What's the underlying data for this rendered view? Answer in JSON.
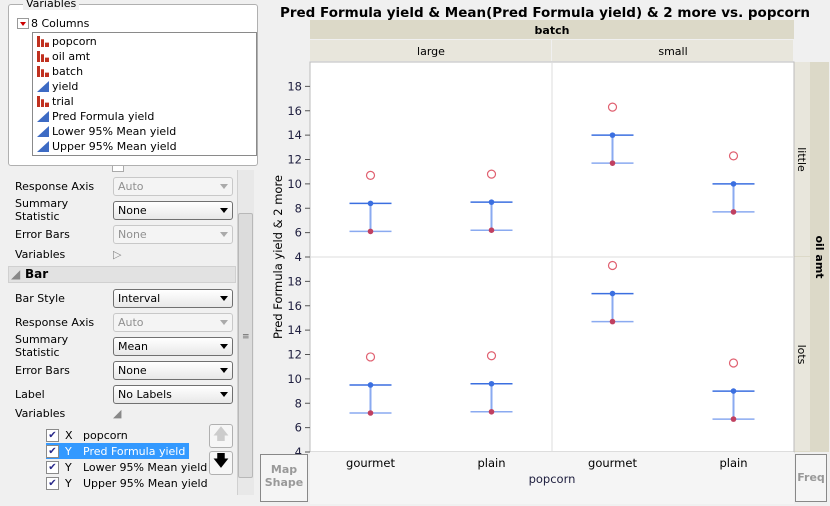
{
  "variables_panel": {
    "title": "Variables",
    "columns_header": "8 Columns",
    "columns": [
      {
        "name": "popcorn",
        "type": "nominal"
      },
      {
        "name": "oil amt",
        "type": "nominal"
      },
      {
        "name": "batch",
        "type": "nominal"
      },
      {
        "name": "yield",
        "type": "continuous"
      },
      {
        "name": "trial",
        "type": "nominal"
      },
      {
        "name": "Pred Formula yield",
        "type": "continuous"
      },
      {
        "name": "Lower 95% Mean yield",
        "type": "continuous"
      },
      {
        "name": "Upper 95% Mean yield",
        "type": "continuous"
      }
    ]
  },
  "points_section": {
    "response_axis_label": "Response Axis",
    "response_axis_value": "Auto",
    "summary_label": "Summary Statistic",
    "summary_value": "None",
    "error_bars_label": "Error Bars",
    "error_bars_value": "None",
    "variables_label": "Variables"
  },
  "bar_section": {
    "title": "Bar",
    "bar_style_label": "Bar Style",
    "bar_style_value": "Interval",
    "response_axis_label": "Response Axis",
    "response_axis_value": "Auto",
    "summary_label": "Summary Statistic",
    "summary_value": "Mean",
    "error_bars_label": "Error Bars",
    "error_bars_value": "None",
    "label_label": "Label",
    "label_value": "No Labels",
    "variables_label": "Variables",
    "variables": [
      {
        "role": "X",
        "name": "popcorn",
        "checked": true
      },
      {
        "role": "Y",
        "name": "Pred Formula yield",
        "checked": true,
        "selected": true
      },
      {
        "role": "Y",
        "name": "Lower 95% Mean yield",
        "checked": true
      },
      {
        "role": "Y",
        "name": "Upper 95% Mean yield",
        "checked": true
      }
    ]
  },
  "map_shape_label": "Map Shape",
  "freq_label": "Freq",
  "chart_data": {
    "type": "interval",
    "title": "Pred Formula yield & Mean(Pred Formula yield) & 2 more vs. popcorn",
    "xlabel": "popcorn",
    "ylabel": "Pred Formula yield & 2 more",
    "ylim": [
      4,
      20
    ],
    "yticks": [
      4,
      6,
      8,
      10,
      12,
      14,
      16,
      18
    ],
    "group_x": {
      "label": "batch",
      "levels": [
        "large",
        "small"
      ]
    },
    "group_y": {
      "label": "oil amt",
      "levels": [
        "little",
        "lots"
      ]
    },
    "categories": [
      "gourmet",
      "plain"
    ],
    "panels": [
      {
        "batch": "large",
        "oil": "little",
        "pred": [
          10.7,
          10.8
        ],
        "upper": [
          8.4,
          8.5
        ],
        "lower": [
          6.1,
          6.2
        ]
      },
      {
        "batch": "small",
        "oil": "little",
        "pred": [
          16.3,
          12.3
        ],
        "upper": [
          14.0,
          10.0
        ],
        "lower": [
          11.7,
          7.7
        ]
      },
      {
        "batch": "large",
        "oil": "lots",
        "pred": [
          11.8,
          11.9
        ],
        "upper": [
          9.5,
          9.6
        ],
        "lower": [
          7.2,
          7.3
        ]
      },
      {
        "batch": "small",
        "oil": "lots",
        "pred": [
          19.3,
          11.3
        ],
        "upper": [
          17.0,
          9.0
        ],
        "lower": [
          14.7,
          6.7
        ]
      }
    ],
    "colors": {
      "pred": "#e06070",
      "upper": "#3b6fe0",
      "lower": "#c04060",
      "interval": "#8aaaf0"
    }
  }
}
